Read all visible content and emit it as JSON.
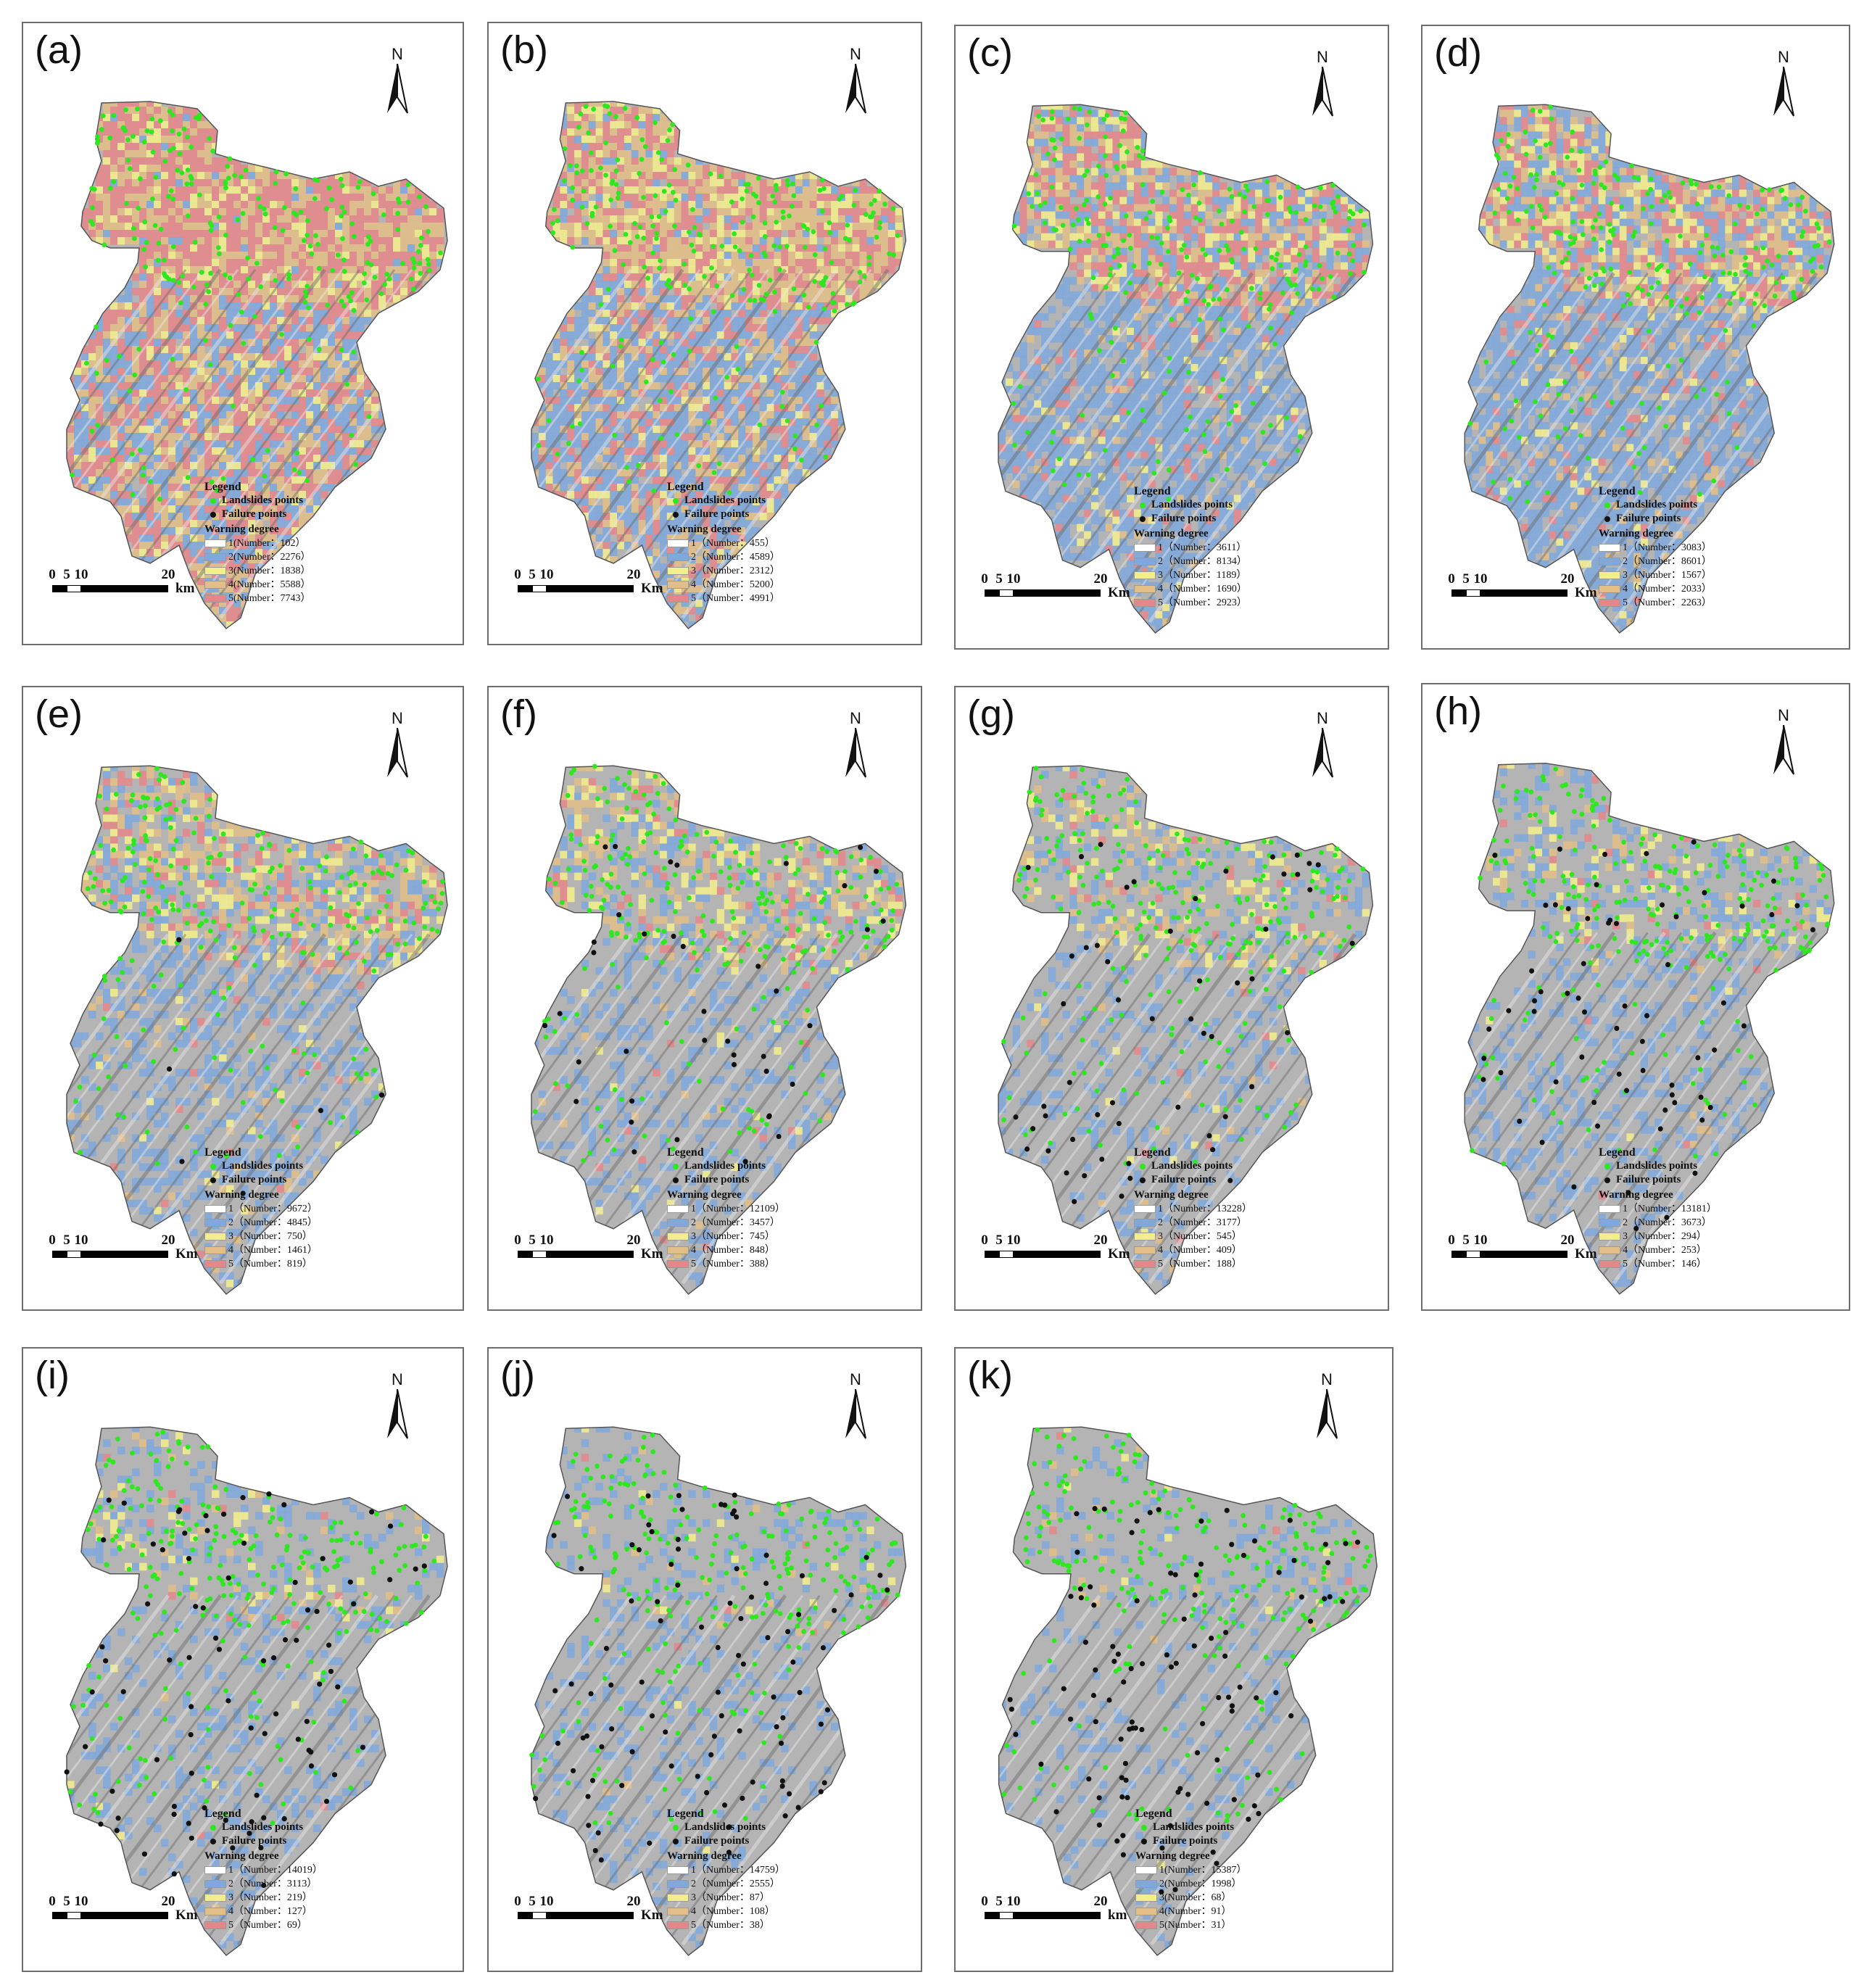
{
  "legend_title": "Legend",
  "landslide_label": "Landslides points",
  "failure_label": "Failure points",
  "warning_label": "Warning degree",
  "scale_ticks": [
    "0",
    "5",
    "10",
    "20"
  ],
  "colors": {
    "class1": "#ffffff",
    "class2": "#7fa8dc",
    "class3": "#f3ee8c",
    "class4": "#e3be86",
    "class5": "#e5878a",
    "landslide": "#2ee81f",
    "failure": "#111111",
    "hillshade": "#b4b4b4"
  },
  "panels": [
    {
      "label": "(a)",
      "unit": "km",
      "classes": [
        "1(Number：102）",
        "2(Number：2276）",
        "3(Number：1838）",
        "4(Number：5588）",
        "5(Number：7743）"
      ],
      "counts": [
        102,
        2276,
        1838,
        5588,
        7743
      ],
      "failure_points": 0
    },
    {
      "label": "(b)",
      "unit": "Km",
      "classes": [
        "1（Number：455）",
        "2（Number：4589）",
        "3（Number：2312）",
        "4（Number：5200）",
        "5（Number：4991）"
      ],
      "counts": [
        455,
        4589,
        2312,
        5200,
        4991
      ],
      "failure_points": 0
    },
    {
      "label": "(c)",
      "unit": "Km",
      "classes": [
        "1（Number：3611）",
        "2（Number：8134）",
        "3（Number：1189）",
        "4（Number：1690）",
        "5（Number：2923）"
      ],
      "counts": [
        3611,
        8134,
        1189,
        1690,
        2923
      ],
      "failure_points": 0
    },
    {
      "label": "(d)",
      "unit": "Km",
      "classes": [
        "1（Number：3083）",
        "2（Number：8601）",
        "3（Number：1567）",
        "4（Number：2033）",
        "5（Number：2263）"
      ],
      "counts": [
        3083,
        8601,
        1567,
        2033,
        2263
      ],
      "failure_points": 0
    },
    {
      "label": "(e)",
      "unit": "Km",
      "classes": [
        "1（Number：9672）",
        "2（Number：4845）",
        "3（Number：750）",
        "4（Number：1461）",
        "5（Number：819）"
      ],
      "counts": [
        9672,
        4845,
        750,
        1461,
        819
      ],
      "failure_points": 6
    },
    {
      "label": "(f)",
      "unit": "Km",
      "classes": [
        "1（Number：12109）",
        "2（Number：3457）",
        "3（Number：745）",
        "4（Number：848）",
        "5（Number：388）"
      ],
      "counts": [
        12109,
        3457,
        745,
        848,
        388
      ],
      "failure_points": 40
    },
    {
      "label": "(g)",
      "unit": "Km",
      "classes": [
        "1（Number：13228）",
        "2（Number：3177）",
        "3（Number：545）",
        "4（Number：409）",
        "5（Number：188）"
      ],
      "counts": [
        13228,
        3177,
        545,
        409,
        188
      ],
      "failure_points": 55
    },
    {
      "label": "(h)",
      "unit": "Km",
      "classes": [
        "1（Number：13181）",
        "2（Number：3673）",
        "3（Number：294）",
        "4（Number：253）",
        "5（Number：146）"
      ],
      "counts": [
        13181,
        3673,
        294,
        253,
        146
      ],
      "failure_points": 65
    },
    {
      "label": "(i)",
      "unit": "Km",
      "classes": [
        "1（Number：14019）",
        "2（Number：3113）",
        "3（Number：219）",
        "4（Number：127）",
        "5（Number：69）"
      ],
      "counts": [
        14019,
        3113,
        219,
        127,
        69
      ],
      "failure_points": 85
    },
    {
      "label": "(j)",
      "unit": "Km",
      "classes": [
        "1（Number：14759）",
        "2（Number：2555）",
        "3（Number：87）",
        "4（Number：108）",
        "5（Number：38）"
      ],
      "counts": [
        14759,
        2555,
        87,
        108,
        38
      ],
      "failure_points": 95
    },
    {
      "label": "(k)",
      "unit": "km",
      "classes": [
        "1(Number：15387）",
        "2(Number：1998）",
        "3(Number：68）",
        "4(Number：91）",
        "5(Number：31）"
      ],
      "counts": [
        15387,
        1998,
        68,
        91,
        31
      ],
      "failure_points": 105
    }
  ]
}
